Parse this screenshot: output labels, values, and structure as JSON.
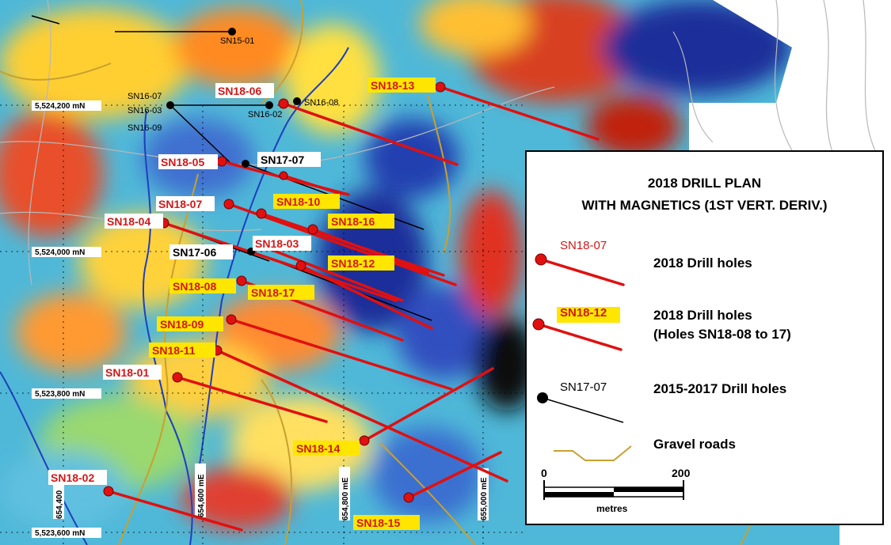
{
  "legend": {
    "title_line1": "2018 DRILL PLAN",
    "title_line2": "WITH MAGNETICS (1ST VERT. DERIV.)",
    "items": [
      {
        "sample": "SN18-07",
        "text": "2018 Drill holes"
      },
      {
        "sample": "SN18-12",
        "text": "2018 Drill holes\n(Holes SN18-08 to 17)"
      },
      {
        "sample": "SN17-07",
        "text": "2015-2017  Drill holes"
      },
      {
        "sample": "",
        "text": "Gravel roads"
      }
    ],
    "scale": {
      "start": "0",
      "end": "200",
      "unit": "metres"
    }
  },
  "grid": {
    "northings": [
      "5,524,200 mN",
      "5,524,000 mN",
      "5,523,800 mN",
      "5,523,600 mN"
    ],
    "eastings": [
      "654,400",
      "654,600 mE",
      "654,800 mE",
      "655,000 mE"
    ]
  },
  "holes_2018_plain": [
    "SN18-06",
    "SN18-05",
    "SN18-07",
    "SN18-04",
    "SN18-03",
    "SN18-01",
    "SN18-02"
  ],
  "holes_2018_highlight": [
    "SN18-13",
    "SN18-10",
    "SN18-16",
    "SN18-12",
    "SN18-08",
    "SN18-17",
    "SN18-09",
    "SN18-11",
    "SN18-14",
    "SN18-15"
  ],
  "holes_prior": [
    "SN17-07",
    "SN17-06"
  ],
  "holes_prior_small": [
    "SN15-01",
    "SN16-07",
    "SN16-03",
    "SN16-09",
    "SN16-02",
    "SN16-08"
  ],
  "colors": {
    "drill_2018": "#e01010",
    "label_red": "#d01818",
    "highlight": "#ffe600",
    "road": "#c9a030",
    "stream": "#1f3fbf"
  }
}
